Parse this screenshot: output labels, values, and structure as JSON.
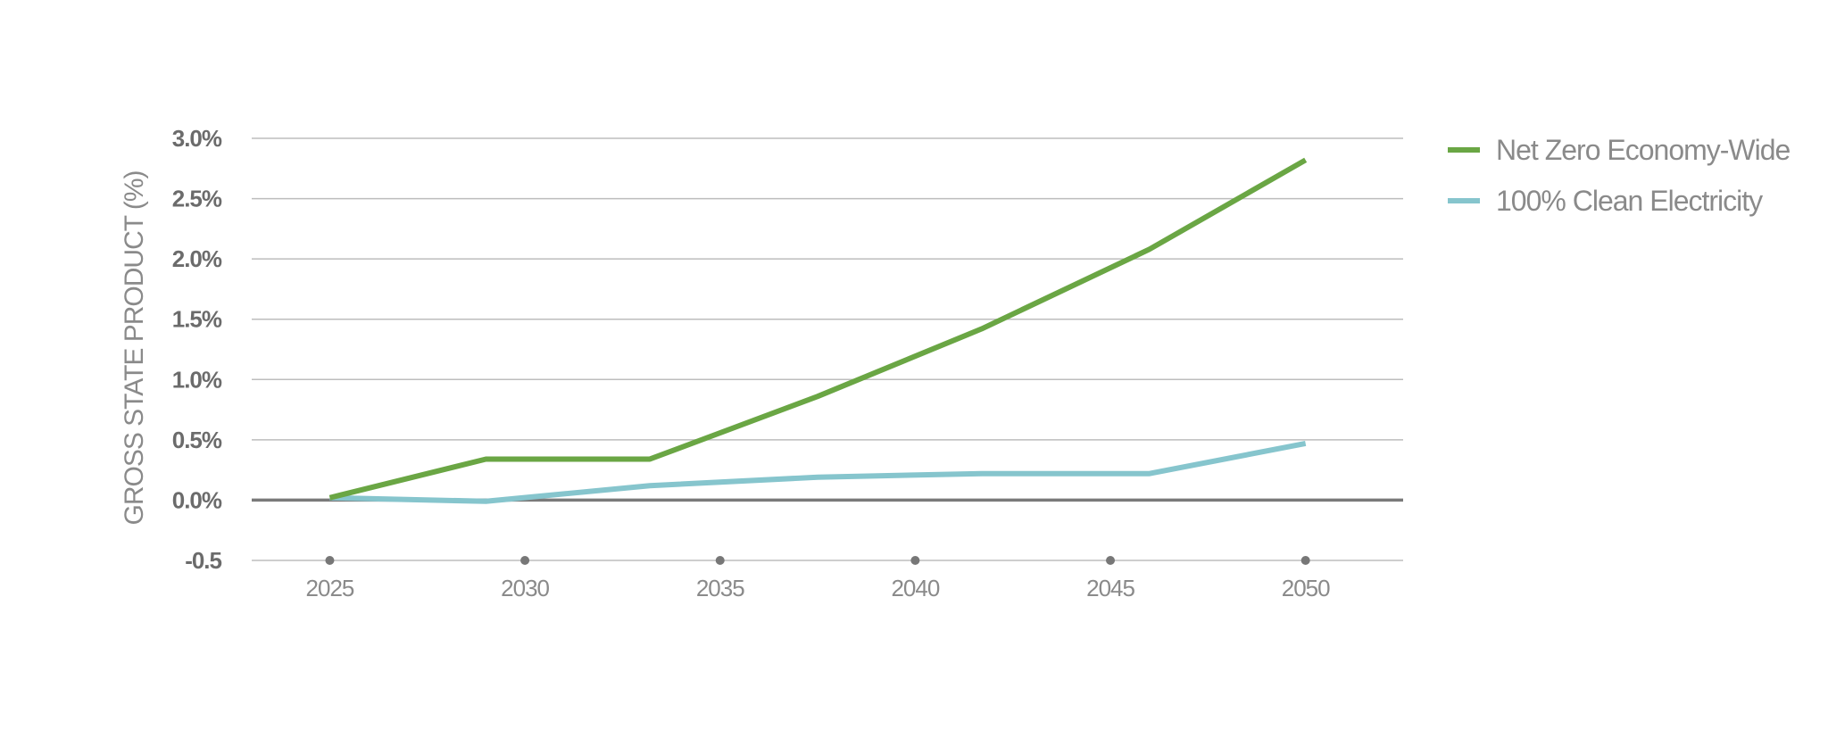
{
  "chart_data": {
    "type": "line",
    "title": "",
    "xlabel": "",
    "ylabel": "GROSS STATE PRODUCT (%)",
    "x": [
      2025,
      2029,
      2033.2,
      2037.5,
      2041.7,
      2046,
      2050
    ],
    "x_ticks": [
      2025,
      2030,
      2035,
      2040,
      2045,
      2050
    ],
    "x_tick_labels": [
      "2025",
      "2030",
      "2035",
      "2040",
      "2045",
      "2050"
    ],
    "xlim": [
      2023,
      2052.5
    ],
    "y_ticks": [
      -0.5,
      0.0,
      0.5,
      1.0,
      1.5,
      2.0,
      2.5,
      3.0
    ],
    "y_tick_labels": [
      "-0.5",
      "0.0%",
      "0.5%",
      "1.0%",
      "1.5%",
      "2.0%",
      "2.5%",
      "3.0%"
    ],
    "ylim": [
      -0.5,
      3.0
    ],
    "grid": true,
    "legend_position": "top-right",
    "series": [
      {
        "name": "Net Zero Economy-Wide",
        "color": "#6aa644",
        "x": [
          2025,
          2029,
          2033.2,
          2037.5,
          2041.7,
          2046,
          2050
        ],
        "values": [
          0.02,
          0.34,
          0.34,
          0.86,
          1.42,
          2.08,
          2.82
        ]
      },
      {
        "name": "100% Clean Electricity",
        "color": "#86c5cd",
        "x": [
          2025,
          2029,
          2033.2,
          2037.5,
          2041.7,
          2046,
          2050
        ],
        "values": [
          0.02,
          -0.01,
          0.12,
          0.19,
          0.22,
          0.22,
          0.47
        ]
      }
    ]
  }
}
